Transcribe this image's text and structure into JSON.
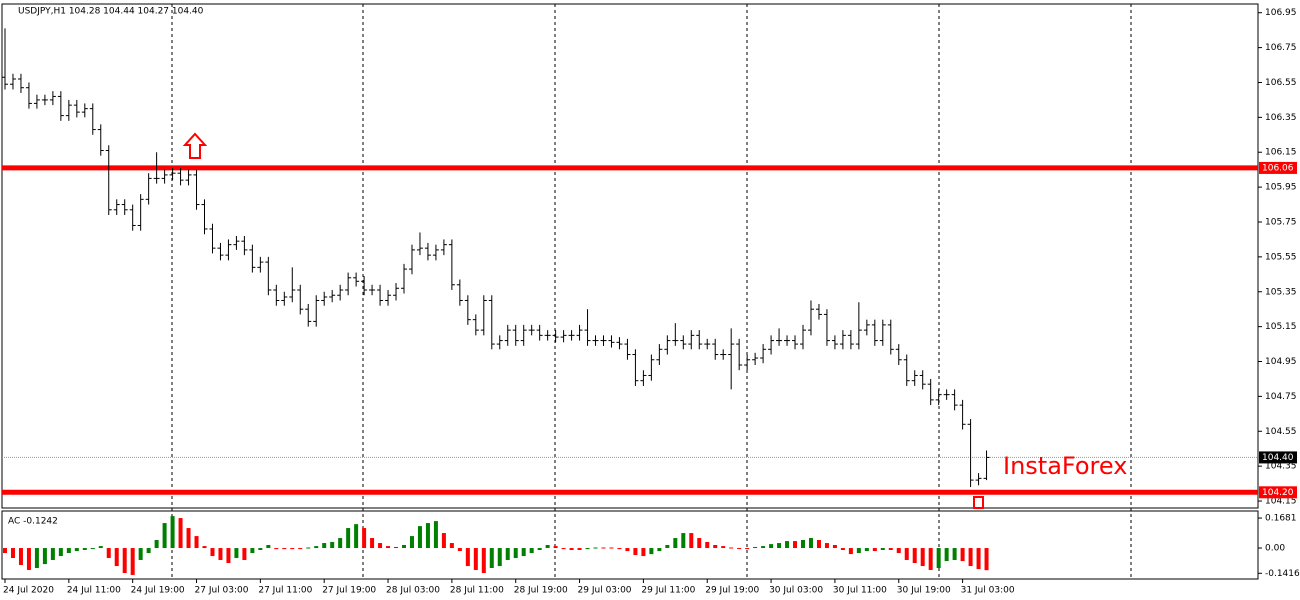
{
  "chart_data": [
    {
      "type": "ohlc",
      "header": "USDJPY,H1  104.28 104.44 104.27 104.40",
      "watermark": "InstaForex",
      "color": "#000000",
      "level_color": "#ff0000",
      "watermark_color": "#ff0000",
      "categories": [
        "24 Jul 2020",
        null,
        null,
        null,
        null,
        null,
        null,
        null,
        "24 Jul 11:00",
        null,
        null,
        null,
        null,
        null,
        null,
        null,
        "24 Jul 19:00",
        null,
        null,
        null,
        null,
        null,
        null,
        null,
        "27 Jul 03:00",
        null,
        null,
        null,
        null,
        null,
        null,
        null,
        "27 Jul 11:00",
        null,
        null,
        null,
        null,
        null,
        null,
        null,
        "27 Jul 19:00",
        null,
        null,
        null,
        null,
        null,
        null,
        null,
        "28 Jul 03:00",
        null,
        null,
        null,
        null,
        null,
        null,
        null,
        "28 Jul 11:00",
        null,
        null,
        null,
        null,
        null,
        null,
        null,
        "28 Jul 19:00",
        null,
        null,
        null,
        null,
        null,
        null,
        null,
        "29 Jul 03:00",
        null,
        null,
        null,
        null,
        null,
        null,
        null,
        "29 Jul 11:00",
        null,
        null,
        null,
        null,
        null,
        null,
        null,
        "29 Jul 19:00",
        null,
        null,
        null,
        null,
        null,
        null,
        null,
        "30 Jul 03:00",
        null,
        null,
        null,
        null,
        null,
        null,
        null,
        "30 Jul 11:00",
        null,
        null,
        null,
        null,
        null,
        null,
        null,
        "30 Jul 19:00",
        null,
        null,
        null,
        null,
        null,
        null,
        null,
        "31 Jul 03:00",
        null,
        null,
        null
      ],
      "open": [
        106.58,
        106.54,
        106.57,
        106.52,
        106.43,
        106.45,
        106.45,
        106.47,
        106.36,
        106.42,
        106.38,
        106.4,
        106.28,
        106.16,
        105.82,
        105.85,
        105.82,
        105.73,
        105.88,
        106.0,
        106.0,
        106.02,
        106.03,
        105.99,
        106.02,
        105.85,
        105.71,
        105.6,
        105.56,
        105.62,
        105.64,
        105.59,
        105.49,
        105.52,
        105.36,
        105.3,
        105.32,
        105.36,
        105.25,
        105.18,
        105.3,
        105.32,
        105.33,
        105.36,
        105.43,
        105.41,
        105.36,
        105.36,
        105.3,
        105.33,
        105.37,
        105.48,
        105.59,
        105.6,
        105.56,
        105.59,
        105.62,
        105.39,
        105.3,
        105.19,
        105.13,
        105.3,
        105.05,
        105.07,
        105.13,
        105.07,
        105.13,
        105.13,
        105.1,
        105.1,
        105.09,
        105.1,
        105.1,
        105.13,
        105.07,
        105.07,
        105.07,
        105.06,
        105.05,
        104.99,
        104.84,
        104.87,
        104.96,
        105.02,
        105.07,
        105.07,
        105.05,
        105.1,
        105.05,
        105.05,
        104.99,
        104.99,
        105.05,
        104.93,
        104.96,
        104.97,
        105.02,
        105.07,
        105.07,
        105.07,
        105.05,
        105.13,
        105.25,
        105.22,
        105.07,
        105.05,
        105.1,
        105.05,
        105.13,
        105.16,
        105.07,
        105.16,
        105.02,
        104.96,
        104.84,
        104.87,
        104.82,
        104.73,
        104.76,
        104.76,
        104.7,
        104.59,
        104.27,
        104.28
      ],
      "high": [
        106.86,
        106.6,
        106.6,
        106.55,
        106.48,
        106.48,
        106.5,
        106.5,
        106.45,
        106.45,
        106.43,
        106.43,
        106.31,
        106.19,
        105.88,
        105.88,
        105.85,
        105.91,
        106.03,
        106.15,
        106.05,
        106.06,
        106.06,
        106.05,
        106.05,
        105.88,
        105.74,
        105.63,
        105.65,
        105.67,
        105.67,
        105.62,
        105.55,
        105.55,
        105.39,
        105.35,
        105.49,
        105.39,
        105.28,
        105.33,
        105.35,
        105.36,
        105.39,
        105.46,
        105.46,
        105.44,
        105.39,
        105.39,
        105.36,
        105.4,
        105.51,
        105.62,
        105.69,
        105.63,
        105.62,
        105.65,
        105.65,
        105.42,
        105.33,
        105.22,
        105.33,
        105.33,
        105.1,
        105.16,
        105.16,
        105.16,
        105.16,
        105.16,
        105.13,
        105.13,
        105.13,
        105.13,
        105.16,
        105.25,
        105.1,
        105.1,
        105.1,
        105.09,
        105.08,
        105.02,
        104.9,
        104.99,
        105.05,
        105.1,
        105.17,
        105.1,
        105.13,
        105.13,
        105.08,
        105.08,
        105.02,
        105.14,
        105.08,
        104.99,
        105.0,
        105.05,
        105.1,
        105.14,
        105.1,
        105.1,
        105.16,
        105.3,
        105.28,
        105.25,
        105.1,
        105.13,
        105.13,
        105.29,
        105.19,
        105.19,
        105.19,
        105.19,
        105.05,
        104.99,
        104.9,
        104.9,
        104.85,
        104.79,
        104.79,
        104.79,
        104.73,
        104.62,
        104.31,
        104.44
      ],
      "low": [
        106.51,
        106.51,
        106.49,
        106.4,
        106.4,
        106.42,
        106.42,
        106.33,
        106.33,
        106.35,
        106.35,
        106.25,
        106.13,
        105.79,
        105.79,
        105.79,
        105.7,
        105.7,
        105.85,
        105.97,
        105.97,
        105.99,
        105.96,
        105.96,
        105.82,
        105.68,
        105.57,
        105.53,
        105.53,
        105.59,
        105.56,
        105.46,
        105.46,
        105.33,
        105.27,
        105.27,
        105.29,
        105.22,
        105.15,
        105.15,
        105.27,
        105.29,
        105.3,
        105.33,
        105.38,
        105.33,
        105.33,
        105.27,
        105.27,
        105.3,
        105.34,
        105.45,
        105.56,
        105.53,
        105.53,
        105.56,
        105.36,
        105.27,
        105.16,
        105.1,
        105.1,
        105.02,
        105.02,
        105.04,
        105.04,
        105.04,
        105.1,
        105.07,
        105.07,
        105.06,
        105.06,
        105.07,
        105.07,
        105.04,
        105.04,
        105.04,
        105.03,
        105.02,
        104.96,
        104.81,
        104.81,
        104.84,
        104.93,
        104.99,
        105.04,
        105.02,
        105.02,
        105.02,
        105.02,
        104.96,
        104.96,
        104.79,
        104.9,
        104.9,
        104.93,
        104.94,
        104.99,
        105.04,
        105.04,
        105.02,
        105.02,
        105.1,
        105.19,
        105.04,
        105.02,
        105.02,
        105.02,
        105.02,
        105.1,
        105.04,
        105.04,
        104.99,
        104.93,
        104.81,
        104.81,
        104.79,
        104.7,
        104.7,
        104.73,
        104.67,
        104.56,
        104.23,
        104.24,
        104.27
      ],
      "close": [
        106.54,
        106.57,
        106.52,
        106.43,
        106.45,
        106.45,
        106.47,
        106.36,
        106.42,
        106.38,
        106.4,
        106.28,
        106.16,
        105.82,
        105.85,
        105.82,
        105.73,
        105.88,
        106.0,
        106.0,
        106.02,
        106.03,
        105.99,
        106.02,
        105.85,
        105.71,
        105.6,
        105.56,
        105.62,
        105.64,
        105.59,
        105.49,
        105.52,
        105.36,
        105.3,
        105.32,
        105.36,
        105.25,
        105.18,
        105.3,
        105.32,
        105.33,
        105.36,
        105.43,
        105.41,
        105.36,
        105.36,
        105.3,
        105.33,
        105.37,
        105.48,
        105.59,
        105.6,
        105.56,
        105.59,
        105.62,
        105.39,
        105.3,
        105.19,
        105.13,
        105.3,
        105.05,
        105.07,
        105.13,
        105.07,
        105.13,
        105.13,
        105.1,
        105.1,
        105.09,
        105.1,
        105.1,
        105.13,
        105.07,
        105.07,
        105.07,
        105.06,
        105.05,
        104.99,
        104.84,
        104.87,
        104.96,
        105.02,
        105.07,
        105.07,
        105.05,
        105.1,
        105.05,
        105.05,
        104.99,
        104.99,
        105.05,
        104.93,
        104.96,
        104.97,
        105.02,
        105.07,
        105.07,
        105.07,
        105.05,
        105.13,
        105.25,
        105.22,
        105.07,
        105.05,
        105.1,
        105.05,
        105.13,
        105.16,
        105.07,
        105.16,
        105.02,
        104.96,
        104.84,
        104.87,
        104.82,
        104.73,
        104.76,
        104.76,
        104.7,
        104.59,
        104.27,
        104.28,
        104.4
      ],
      "ylim": [
        104.11,
        107.0
      ],
      "yticks": [
        106.95,
        106.75,
        106.55,
        106.35,
        106.15,
        105.95,
        105.75,
        105.55,
        105.35,
        105.15,
        104.95,
        104.75,
        104.55,
        104.35,
        104.15
      ],
      "levels": [
        106.06,
        {
          "value": 104.2,
          "label": "104.20"
        }
      ],
      "last_price": {
        "value": 104.4,
        "label": "104.40"
      }
    },
    {
      "type": "bar",
      "title": "AC -0.1242",
      "up_color": "#008000",
      "down_color": "#ff0000",
      "values": [
        -0.028,
        -0.056,
        -0.095,
        -0.123,
        -0.112,
        -0.09,
        -0.067,
        -0.045,
        -0.028,
        -0.017,
        -0.011,
        -0.006,
        0.011,
        -0.056,
        -0.101,
        -0.14,
        -0.151,
        -0.067,
        -0.028,
        0.045,
        0.14,
        0.179,
        0.168,
        0.112,
        0.067,
        0.011,
        -0.045,
        -0.067,
        -0.084,
        -0.056,
        -0.067,
        -0.028,
        -0.011,
        0.017,
        -0.006,
        -0.006,
        -0.006,
        -0.006,
        0.003,
        0.011,
        0.028,
        0.034,
        0.056,
        0.112,
        0.134,
        0.112,
        0.056,
        0.028,
        0.011,
        0.006,
        0.017,
        0.067,
        0.123,
        0.14,
        0.151,
        0.084,
        0.028,
        -0.017,
        -0.101,
        -0.123,
        -0.14,
        -0.112,
        -0.101,
        -0.067,
        -0.056,
        -0.045,
        -0.028,
        -0.011,
        0.017,
        0.011,
        -0.006,
        -0.011,
        -0.011,
        -0.006,
        0.003,
        0.003,
        0.003,
        -0.006,
        -0.017,
        -0.039,
        -0.045,
        -0.034,
        -0.017,
        0.017,
        0.056,
        0.084,
        0.084,
        0.056,
        0.034,
        0.017,
        0.011,
        0.003,
        -0.003,
        -0.006,
        0.006,
        0.011,
        0.022,
        0.028,
        0.039,
        0.039,
        0.045,
        0.056,
        0.045,
        0.028,
        0.017,
        -0.011,
        -0.034,
        -0.028,
        -0.017,
        -0.017,
        -0.011,
        -0.011,
        -0.028,
        -0.067,
        -0.084,
        -0.101,
        -0.123,
        -0.112,
        -0.073,
        -0.067,
        -0.073,
        -0.101,
        -0.118,
        -0.1242
      ],
      "ylim": [
        -0.168,
        0.202
      ],
      "yticks": [
        0.1681,
        {
          "value": 0,
          "label": "0.00"
        },
        -0.1416
      ]
    }
  ]
}
